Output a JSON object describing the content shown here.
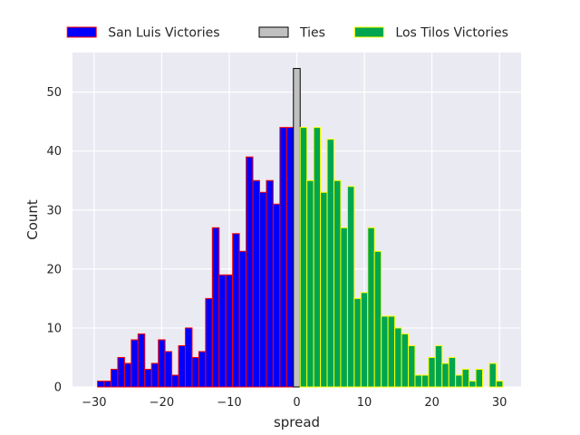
{
  "chart_data": {
    "type": "bar",
    "title": "",
    "xlabel": "spread",
    "ylabel": "Count",
    "xlim": [
      -33.2,
      33.2
    ],
    "ylim": [
      0,
      56.7
    ],
    "x_ticks": [
      -30,
      -20,
      -10,
      0,
      10,
      20,
      30
    ],
    "y_ticks": [
      0,
      10,
      20,
      30,
      40,
      50
    ],
    "grid": true,
    "legend_position": "top",
    "background_color": "#eaeaf2",
    "series": [
      {
        "name": "San Luis Victories",
        "fill": "#0000ff",
        "edge": "#ff0000",
        "bins": [
          {
            "x0": -29.5,
            "x1": -28.5,
            "count": 1
          },
          {
            "x0": -28.5,
            "x1": -27.5,
            "count": 1
          },
          {
            "x0": -27.5,
            "x1": -26.5,
            "count": 3
          },
          {
            "x0": -26.5,
            "x1": -25.5,
            "count": 5
          },
          {
            "x0": -25.5,
            "x1": -24.5,
            "count": 4
          },
          {
            "x0": -24.5,
            "x1": -23.5,
            "count": 8
          },
          {
            "x0": -23.5,
            "x1": -22.5,
            "count": 9
          },
          {
            "x0": -22.5,
            "x1": -21.5,
            "count": 3
          },
          {
            "x0": -21.5,
            "x1": -20.5,
            "count": 4
          },
          {
            "x0": -20.5,
            "x1": -19.5,
            "count": 8
          },
          {
            "x0": -19.5,
            "x1": -18.5,
            "count": 6
          },
          {
            "x0": -18.5,
            "x1": -17.5,
            "count": 2
          },
          {
            "x0": -17.5,
            "x1": -16.5,
            "count": 7
          },
          {
            "x0": -16.5,
            "x1": -15.5,
            "count": 10
          },
          {
            "x0": -15.5,
            "x1": -14.5,
            "count": 5
          },
          {
            "x0": -14.5,
            "x1": -13.5,
            "count": 6
          },
          {
            "x0": -13.5,
            "x1": -12.5,
            "count": 15
          },
          {
            "x0": -12.5,
            "x1": -11.5,
            "count": 27
          },
          {
            "x0": -11.5,
            "x1": -10.5,
            "count": 19
          },
          {
            "x0": -10.5,
            "x1": -9.5,
            "count": 19
          },
          {
            "x0": -9.5,
            "x1": -8.5,
            "count": 26
          },
          {
            "x0": -8.5,
            "x1": -7.5,
            "count": 23
          },
          {
            "x0": -7.5,
            "x1": -6.5,
            "count": 39
          },
          {
            "x0": -6.5,
            "x1": -5.5,
            "count": 35
          },
          {
            "x0": -5.5,
            "x1": -4.5,
            "count": 33
          },
          {
            "x0": -4.5,
            "x1": -3.5,
            "count": 35
          },
          {
            "x0": -3.5,
            "x1": -2.5,
            "count": 31
          },
          {
            "x0": -2.5,
            "x1": -1.5,
            "count": 44
          },
          {
            "x0": -1.5,
            "x1": -0.5,
            "count": 44
          }
        ]
      },
      {
        "name": "Ties",
        "fill": "#c0c0c0",
        "edge": "#000000",
        "bins": [
          {
            "x0": -0.5,
            "x1": 0.5,
            "count": 54
          }
        ]
      },
      {
        "name": "Los Tilos Victories",
        "fill": "#00a550",
        "edge": "#ffff00",
        "bins": [
          {
            "x0": 0.5,
            "x1": 1.5,
            "count": 44
          },
          {
            "x0": 1.5,
            "x1": 2.5,
            "count": 35
          },
          {
            "x0": 2.5,
            "x1": 3.5,
            "count": 44
          },
          {
            "x0": 3.5,
            "x1": 4.5,
            "count": 33
          },
          {
            "x0": 4.5,
            "x1": 5.5,
            "count": 42
          },
          {
            "x0": 5.5,
            "x1": 6.5,
            "count": 35
          },
          {
            "x0": 6.5,
            "x1": 7.5,
            "count": 27
          },
          {
            "x0": 7.5,
            "x1": 8.5,
            "count": 34
          },
          {
            "x0": 8.5,
            "x1": 9.5,
            "count": 15
          },
          {
            "x0": 9.5,
            "x1": 10.5,
            "count": 16
          },
          {
            "x0": 10.5,
            "x1": 11.5,
            "count": 27
          },
          {
            "x0": 11.5,
            "x1": 12.5,
            "count": 23
          },
          {
            "x0": 12.5,
            "x1": 13.5,
            "count": 12
          },
          {
            "x0": 13.5,
            "x1": 14.5,
            "count": 12
          },
          {
            "x0": 14.5,
            "x1": 15.5,
            "count": 10
          },
          {
            "x0": 15.5,
            "x1": 16.5,
            "count": 9
          },
          {
            "x0": 16.5,
            "x1": 17.5,
            "count": 7
          },
          {
            "x0": 17.5,
            "x1": 18.5,
            "count": 2
          },
          {
            "x0": 18.5,
            "x1": 19.5,
            "count": 2
          },
          {
            "x0": 19.5,
            "x1": 20.5,
            "count": 5
          },
          {
            "x0": 20.5,
            "x1": 21.5,
            "count": 7
          },
          {
            "x0": 21.5,
            "x1": 22.5,
            "count": 4
          },
          {
            "x0": 22.5,
            "x1": 23.5,
            "count": 5
          },
          {
            "x0": 23.5,
            "x1": 24.5,
            "count": 2
          },
          {
            "x0": 24.5,
            "x1": 25.5,
            "count": 3
          },
          {
            "x0": 25.5,
            "x1": 26.5,
            "count": 1
          },
          {
            "x0": 26.5,
            "x1": 27.5,
            "count": 3
          },
          {
            "x0": 27.5,
            "x1": 28.5,
            "count": 0
          },
          {
            "x0": 28.5,
            "x1": 29.5,
            "count": 4
          },
          {
            "x0": 29.5,
            "x1": 30.5,
            "count": 1
          }
        ]
      }
    ]
  }
}
